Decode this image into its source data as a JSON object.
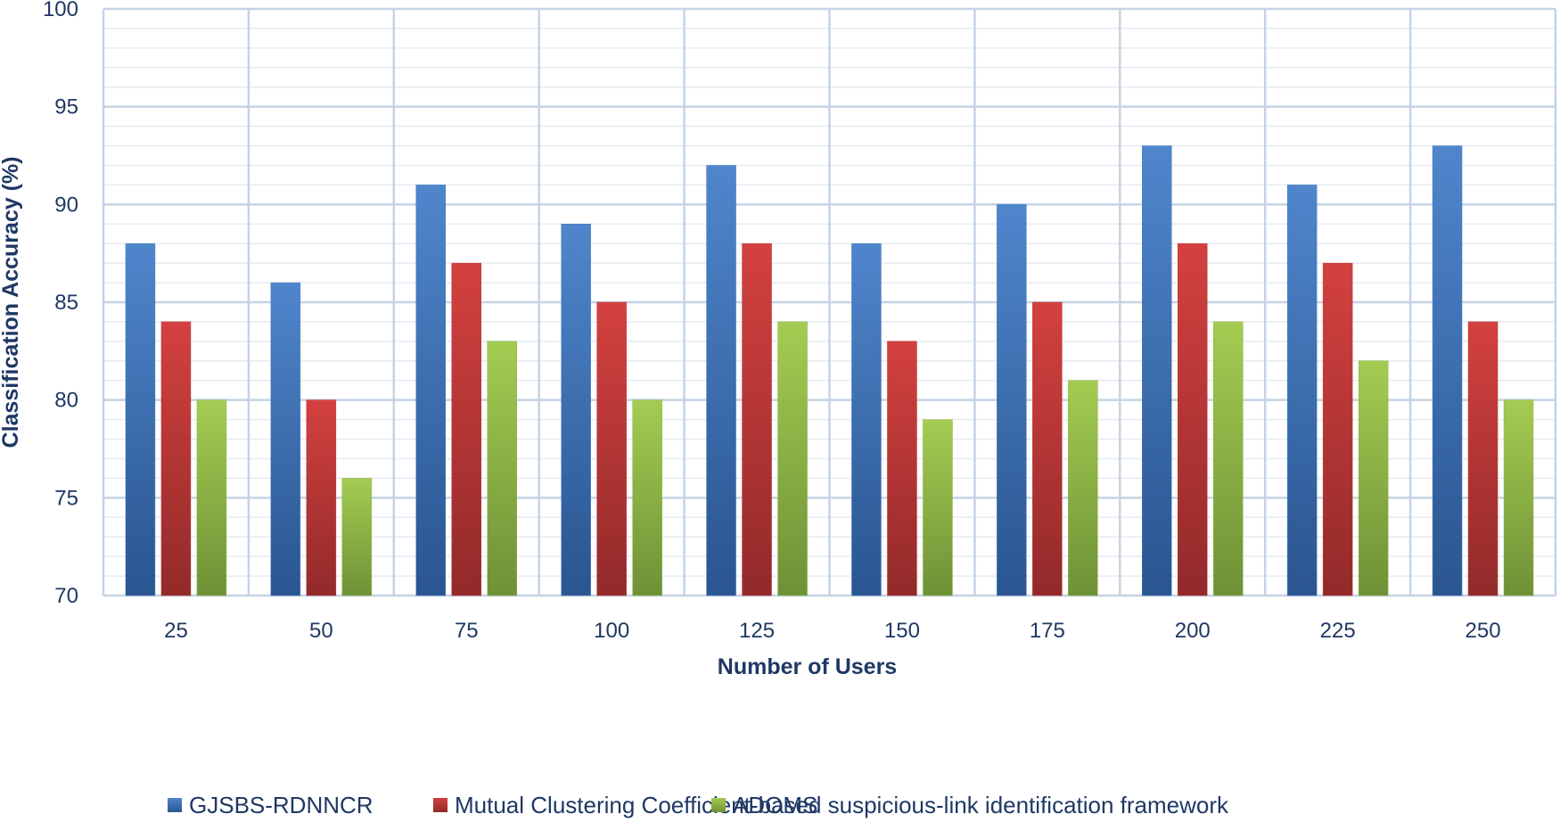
{
  "chart_data": {
    "type": "bar",
    "title": "",
    "xlabel": "Number of Users",
    "ylabel": "Classification Accuracy (%)",
    "ylim": [
      70,
      100
    ],
    "yticks": [
      70,
      75,
      80,
      85,
      90,
      95,
      100
    ],
    "grid": true,
    "legend_position": "bottom",
    "categories": [
      "25",
      "50",
      "75",
      "100",
      "125",
      "150",
      "175",
      "200",
      "225",
      "250"
    ],
    "series": [
      {
        "name": "GJSBS-RDNNCR",
        "color": "#4a7fc1",
        "values": [
          88,
          86,
          91,
          89,
          92,
          88,
          90,
          93,
          91,
          93
        ]
      },
      {
        "name": "Mutual Clustering Coefficient-based suspicious-link identification framework",
        "color": "#c0393a",
        "values": [
          84,
          80,
          87,
          85,
          88,
          83,
          85,
          88,
          87,
          84
        ]
      },
      {
        "name": "ADOMS",
        "color": "#8fb545",
        "values": [
          80,
          76,
          83,
          80,
          84,
          79,
          81,
          84,
          82,
          80
        ]
      }
    ]
  }
}
